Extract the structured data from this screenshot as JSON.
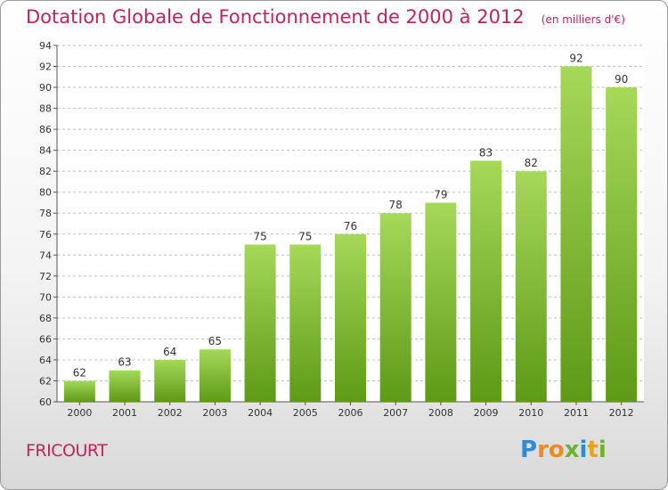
{
  "title": "Dotation Globale de Fonctionnement de 2000 à 2012",
  "unit_note": "(en milliers d'€)",
  "commune": "FRICOURT",
  "logo": {
    "letters": [
      "P",
      "r",
      "o",
      "x",
      "i",
      "t",
      "i"
    ],
    "colors": [
      "#2e8bd6",
      "#f08a1c",
      "#f08a1c",
      "#6bb52b",
      "#2e8bd6",
      "#e8a417",
      "#6bb52b"
    ]
  },
  "colors": {
    "title": "#c0245c",
    "bar_light": "#a6d85a",
    "bar_dark": "#5d9a16",
    "grid": "#bfbfbf"
  },
  "chart_data": {
    "type": "bar",
    "categories": [
      "2000",
      "2001",
      "2002",
      "2003",
      "2004",
      "2005",
      "2006",
      "2007",
      "2008",
      "2009",
      "2010",
      "2011",
      "2012"
    ],
    "values": [
      62,
      63,
      64,
      65,
      75,
      75,
      76,
      78,
      79,
      83,
      82,
      92,
      90
    ],
    "ylim": [
      60,
      94
    ],
    "yticks": [
      60,
      62,
      64,
      66,
      68,
      70,
      72,
      74,
      76,
      78,
      80,
      82,
      84,
      86,
      88,
      90,
      92,
      94
    ],
    "grid": true
  }
}
